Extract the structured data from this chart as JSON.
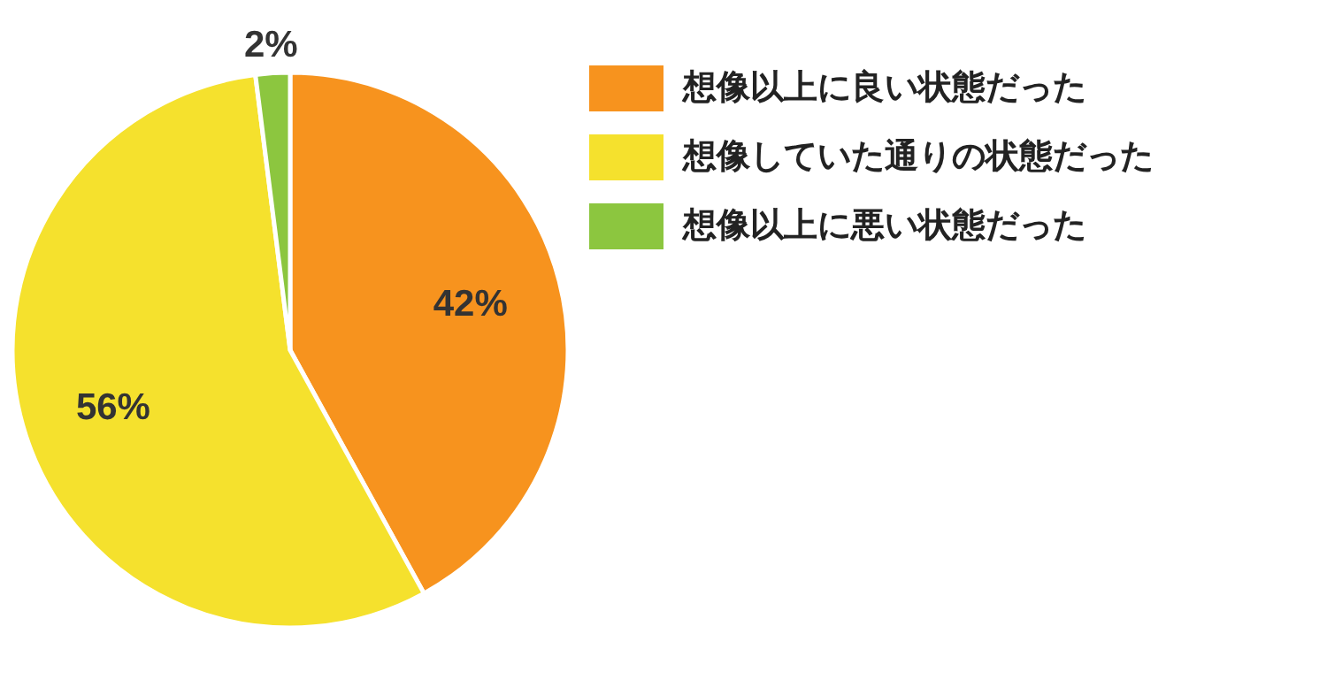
{
  "chart_data": {
    "type": "pie",
    "categories": [
      "想像以上に良い状態だった",
      "想像していた通りの状態だった",
      "想像以上に悪い状態だった"
    ],
    "values": [
      42,
      56,
      2
    ],
    "colors": [
      "#f7931e",
      "#f5e12d",
      "#8cc63f"
    ],
    "value_labels": [
      "42%",
      "56%",
      "2%"
    ],
    "legend": "top right"
  }
}
